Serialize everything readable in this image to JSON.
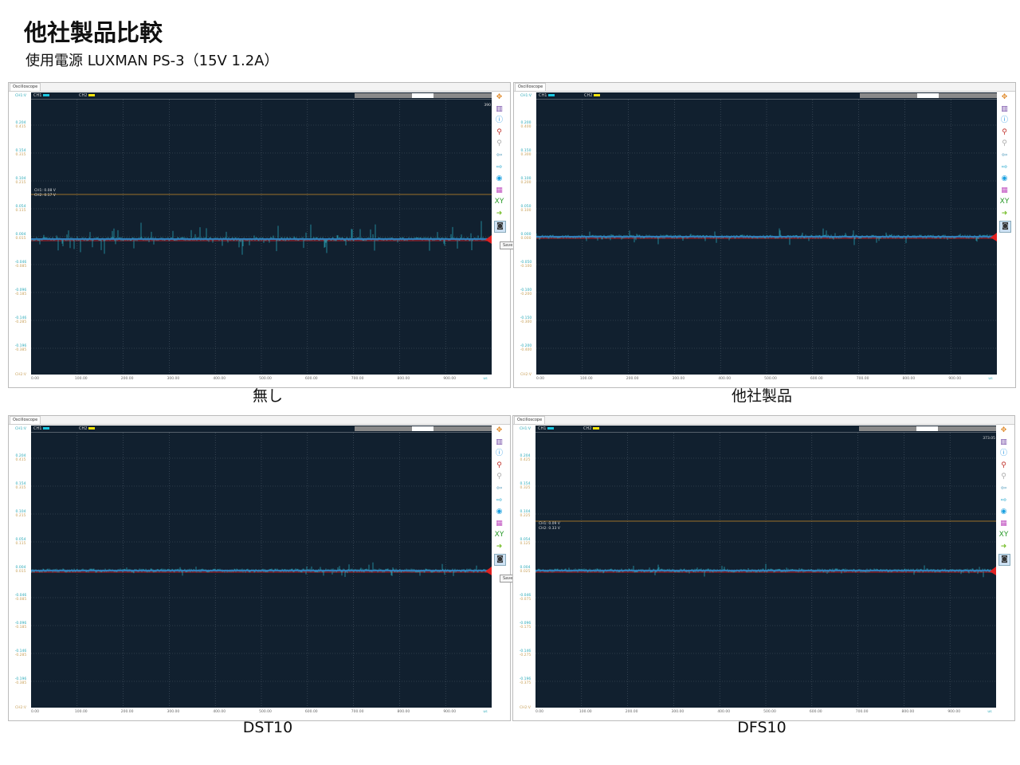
{
  "header": {
    "title": "他社製品比較",
    "subtitle": "使用電源 LUXMAN PS-3（15V 1.2A）"
  },
  "common": {
    "tab_label": "Oscilloscope",
    "ch1_label": "CH1",
    "ch2_label": "CH2",
    "ch1_axis": "CH1:V",
    "ch2_axis": "CH2:V",
    "x_unit": "us",
    "save_tooltip": "Save",
    "x_ticks": [
      "0.00",
      "100.00",
      "200.00",
      "300.00",
      "400.00",
      "500.00",
      "600.00",
      "700.00",
      "800.00",
      "900.00"
    ],
    "ch1_color": "#19c6e0",
    "ch2_color": "#f2e20a",
    "tools": [
      "move-icon",
      "ruler-icon",
      "info-icon",
      "zoom-in-icon",
      "zoom-out-icon",
      "back-icon",
      "forward-icon",
      "search-icon",
      "color-icon",
      "xy-icon",
      "export-icon",
      "camera-icon"
    ]
  },
  "panels": [
    {
      "caption": "無し",
      "cursor": [
        "CH1: 0.08 V",
        "CH2: 0.17 V"
      ],
      "marker": "390",
      "y_ticks": [
        [
          "0.204",
          "0.415"
        ],
        [
          "0.154",
          "0.315"
        ],
        [
          "0.104",
          "0.215"
        ],
        [
          "0.054",
          "0.115"
        ],
        [
          "0.004",
          "0.015"
        ],
        [
          "-0.046",
          "-0.085"
        ],
        [
          "-0.096",
          "-0.185"
        ],
        [
          "-0.146",
          "-0.285"
        ],
        [
          "-0.196",
          "-0.385"
        ]
      ],
      "noise_level": 1.0,
      "show_save": true
    },
    {
      "caption": "他社製品",
      "cursor": null,
      "marker": null,
      "y_ticks": [
        [
          "0.200",
          "0.400"
        ],
        [
          "0.150",
          "0.300"
        ],
        [
          "0.100",
          "0.200"
        ],
        [
          "0.050",
          "0.100"
        ],
        [
          "0.000",
          "0.000"
        ],
        [
          "-0.050",
          "-0.100"
        ],
        [
          "-0.100",
          "-0.200"
        ],
        [
          "-0.150",
          "-0.300"
        ],
        [
          "-0.200",
          "-0.400"
        ]
      ],
      "noise_level": 0.35,
      "show_save": false
    },
    {
      "caption": "DST10",
      "cursor": null,
      "marker": null,
      "y_ticks": [
        [
          "0.204",
          "0.415"
        ],
        [
          "0.154",
          "0.315"
        ],
        [
          "0.104",
          "0.215"
        ],
        [
          "0.054",
          "0.115"
        ],
        [
          "0.004",
          "0.015"
        ],
        [
          "-0.046",
          "-0.085"
        ],
        [
          "-0.096",
          "-0.185"
        ],
        [
          "-0.146",
          "-0.285"
        ],
        [
          "-0.196",
          "-0.385"
        ]
      ],
      "noise_level": 0.3,
      "show_save": true
    },
    {
      "caption": "DFS10",
      "cursor": [
        "CH1: 0.09 V",
        "CH2: 0.33 V"
      ],
      "marker": "373.05",
      "y_ticks": [
        [
          "0.204",
          "0.425"
        ],
        [
          "0.154",
          "0.325"
        ],
        [
          "0.104",
          "0.225"
        ],
        [
          "0.054",
          "0.125"
        ],
        [
          "0.004",
          "0.025"
        ],
        [
          "-0.046",
          "-0.075"
        ],
        [
          "-0.096",
          "-0.175"
        ],
        [
          "-0.146",
          "-0.275"
        ],
        [
          "-0.196",
          "-0.375"
        ]
      ],
      "noise_level": 0.25,
      "show_save": false
    }
  ]
}
